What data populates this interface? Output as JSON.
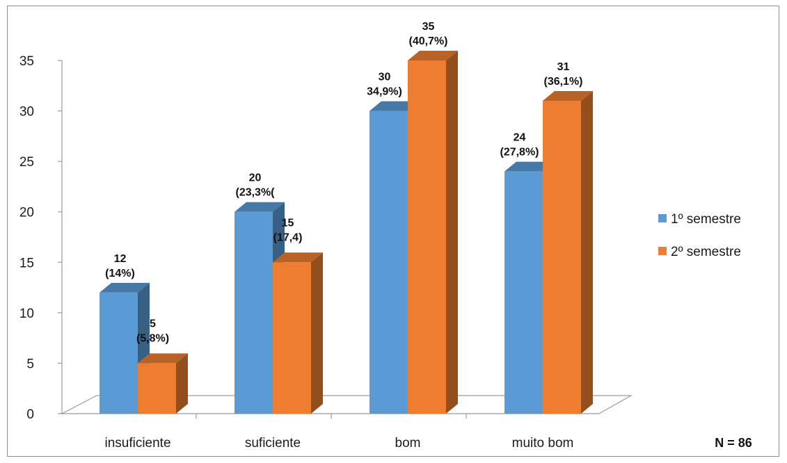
{
  "chart_data": {
    "type": "bar",
    "categories": [
      "insuficiente",
      "suficiente",
      "bom",
      "muito bom"
    ],
    "series": [
      {
        "name": "1º semestre",
        "color": "#5B9BD5",
        "values": [
          12,
          20,
          30,
          24
        ],
        "labels": [
          [
            "12",
            "(14%)"
          ],
          [
            "20",
            "(23,3%("
          ],
          [
            "30",
            "34,9%)"
          ],
          [
            "24",
            "(27,8%)"
          ]
        ]
      },
      {
        "name": "2º semestre",
        "color": "#ED7D31",
        "values": [
          5,
          15,
          35,
          31
        ],
        "labels": [
          [
            "5",
            "(5,8%)"
          ],
          [
            "15",
            "(17,4)"
          ],
          [
            "35",
            "(40,7%)"
          ],
          [
            "31",
            "(36,1%)"
          ]
        ]
      }
    ],
    "yticks": [
      "0",
      "5",
      "10",
      "15",
      "20",
      "25",
      "30",
      "35"
    ],
    "ylim": [
      0,
      35
    ],
    "grid": false,
    "legend_position": "right",
    "annotation": "N = 86",
    "style": "3d-clustered-column"
  }
}
